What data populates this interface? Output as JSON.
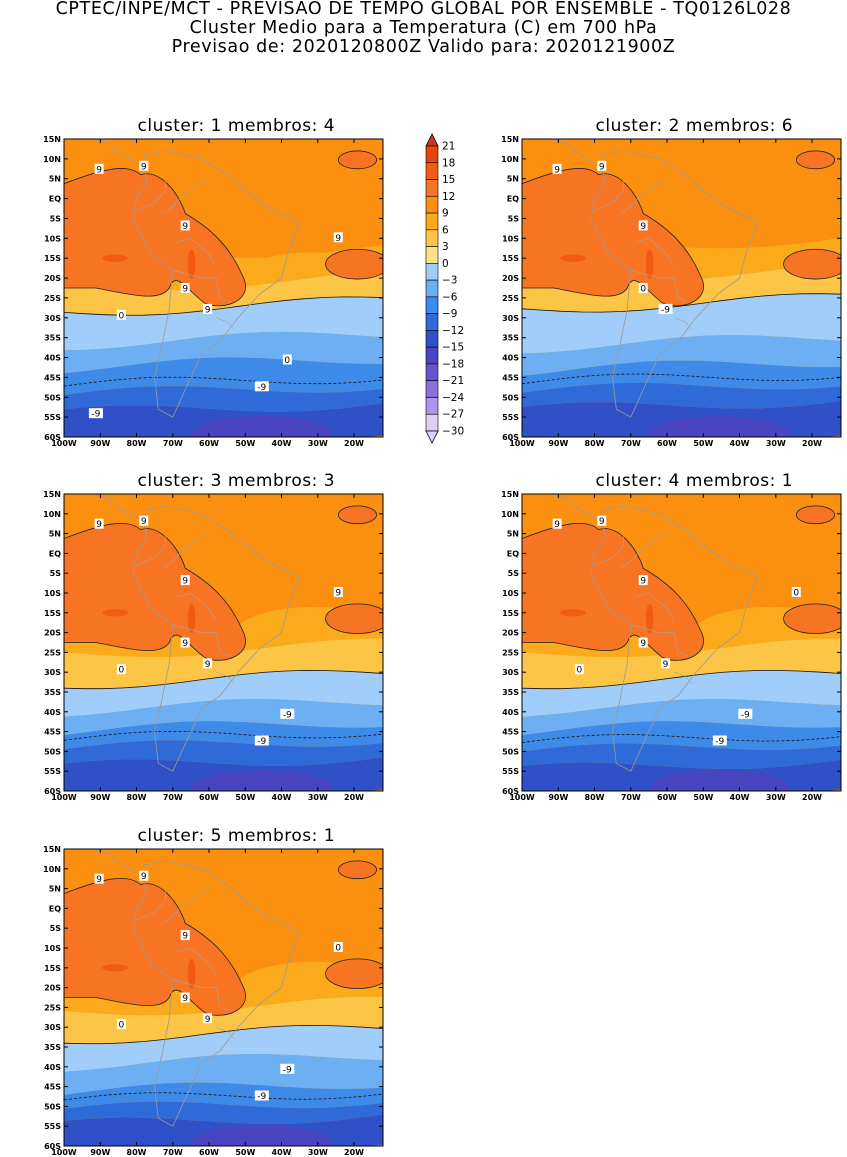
{
  "header": {
    "line1": "CPTEC/INPE/MCT - PREVISAO DE TEMPO GLOBAL POR ENSEMBLE - TQ0126L028",
    "line2": "Cluster Medio para a Temperatura (C) em 700 hPa",
    "line3": "Previsao de: 2020120800Z    Valido para: 2020121900Z"
  },
  "chart_data": {
    "type": "heatmap",
    "variable": "Temperatura (C) em 700 hPa",
    "lon_ticks": [
      "100W",
      "90W",
      "80W",
      "70W",
      "60W",
      "50W",
      "40W",
      "30W",
      "20W"
    ],
    "lat_ticks": [
      "15N",
      "10N",
      "5N",
      "EQ",
      "5S",
      "10S",
      "15S",
      "20S",
      "25S",
      "30S",
      "35S",
      "40S",
      "45S",
      "50S",
      "55S",
      "60S"
    ],
    "lon_range": [
      -100,
      -12
    ],
    "lat_range": [
      -60,
      15
    ],
    "colorbar": {
      "levels": [
        "21",
        "18",
        "15",
        "12",
        "9",
        "6",
        "3",
        "0",
        "-3",
        "-6",
        "-9",
        "-12",
        "-15",
        "-18",
        "-21",
        "-24",
        "-27",
        "-30"
      ],
      "colors": [
        "#d22f2f",
        "#e8420f",
        "#f25b12",
        "#f77422",
        "#fb9010",
        "#fbaa1c",
        "#fcc545",
        "#fde384",
        "#a0cdfa",
        "#6daff3",
        "#3d8ae8",
        "#2e6ad8",
        "#3050c8",
        "#4b44c0",
        "#6a52cc",
        "#8a70dd",
        "#ad95ea",
        "#dcd0f7"
      ]
    },
    "panels": [
      {
        "title": "cluster: 1   membros: 4",
        "labels": [
          "9",
          "9",
          "9",
          "9",
          "9",
          "9",
          "0",
          "0",
          "-9",
          "-9"
        ]
      },
      {
        "title": "cluster: 2   membros: 6",
        "labels": [
          "9",
          "9",
          "9",
          "0",
          "-9"
        ]
      },
      {
        "title": "cluster: 3   membros: 3",
        "labels": [
          "9",
          "9",
          "9",
          "9",
          "9",
          "9",
          "0",
          "-9",
          "-9"
        ]
      },
      {
        "title": "cluster: 4   membros: 1",
        "labels": [
          "9",
          "9",
          "9",
          "9",
          "9",
          "0",
          "0",
          "-9",
          "-9"
        ]
      },
      {
        "title": "cluster: 5   membros: 1",
        "labels": [
          "9",
          "9",
          "9",
          "9",
          "9",
          "0",
          "0",
          "-9",
          "-9"
        ]
      }
    ]
  }
}
